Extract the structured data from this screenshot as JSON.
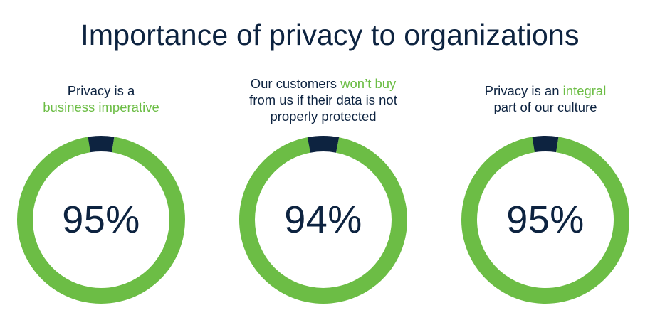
{
  "title": "Importance of privacy to organizations",
  "colors": {
    "ring": "#6cbd45",
    "remainder": "#0d2340",
    "text": "#0d2340",
    "highlight": "#6cbd45"
  },
  "chart_data": [
    {
      "type": "pie",
      "caption_lines": [
        {
          "plain": "Privacy is a",
          "highlight": ""
        },
        {
          "plain": "",
          "highlight": "business imperative"
        }
      ],
      "value_label": "95%",
      "values": [
        95,
        5
      ]
    },
    {
      "type": "pie",
      "caption_lines": [
        {
          "plain": "Our customers ",
          "highlight": "won’t buy"
        },
        {
          "plain": "from us if their data is not",
          "highlight": ""
        },
        {
          "plain": "properly protected",
          "highlight": ""
        }
      ],
      "value_label": "94%",
      "values": [
        94,
        6
      ]
    },
    {
      "type": "pie",
      "caption_lines": [
        {
          "plain": "Privacy is an ",
          "highlight": "integral"
        },
        {
          "plain": "part of our culture",
          "highlight": ""
        }
      ],
      "value_label": "95%",
      "values": [
        95,
        5
      ]
    }
  ]
}
